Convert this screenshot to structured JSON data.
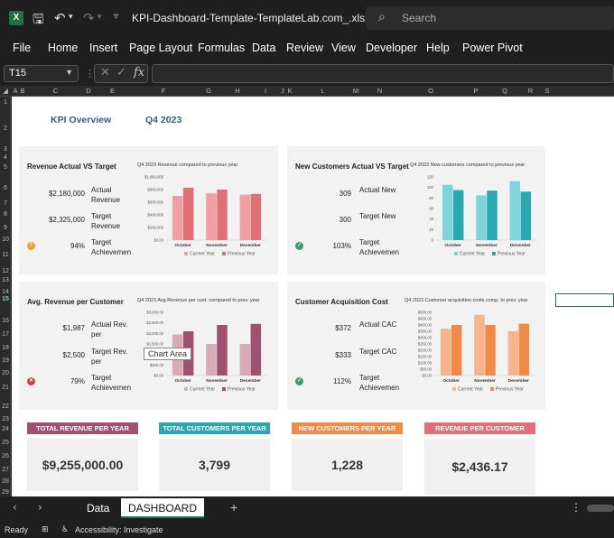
{
  "window": {
    "app_logo": "X",
    "title": "KPI-Dashboard-Template-TemplateLab.com_.xlsx  -...",
    "search_placeholder": "Search"
  },
  "menu": [
    "File",
    "Home",
    "Insert",
    "Page Layout",
    "Formulas",
    "Data",
    "Review",
    "View",
    "Developer",
    "Help",
    "Power Pivot"
  ],
  "formula_bar": {
    "name_box": "T15",
    "cancel": "✕",
    "enter": "✓",
    "fx": "fx"
  },
  "columns": [
    "A",
    "B",
    "C",
    "D",
    "E",
    "F",
    "G",
    "H",
    "I",
    "J",
    "K",
    "L",
    "M",
    "N",
    "O",
    "P",
    "Q",
    "R",
    "S"
  ],
  "rows": [
    "1",
    "2",
    "3",
    "4",
    "5",
    "6",
    "7",
    "8",
    "9",
    "10",
    "11",
    "12",
    "13",
    "14",
    "15",
    "16",
    "17",
    "18",
    "19",
    "20",
    "21",
    "22",
    "23",
    "24",
    "25",
    "26",
    "27",
    "28",
    "29"
  ],
  "selected_row": "15",
  "dashboard": {
    "title": "KPI Overview",
    "quarter": "Q4 2023"
  },
  "panels": [
    {
      "title": "Revenue Actual VS Target",
      "metrics": [
        {
          "value": "$2,180,000",
          "label": "Actual Revenue"
        },
        {
          "value": "$2,325,000",
          "label": "Target Revenue"
        },
        {
          "value": "94%",
          "label": "Target Achievemen"
        }
      ],
      "status": "warning",
      "status_color": "#f0a030",
      "chart_caption": "Q4 2023  Revenue compared to previous year"
    },
    {
      "title": "New Customers Actual VS Target",
      "metrics": [
        {
          "value": "309",
          "label": "Actual New"
        },
        {
          "value": "300",
          "label": "Target New"
        },
        {
          "value": "103%",
          "label": "Target Achievemen"
        }
      ],
      "status": "ok",
      "status_color": "#3a9a6a",
      "chart_caption": "Q4 2023  New customers compared to previous year"
    },
    {
      "title": "Avg. Revenue per Customer",
      "metrics": [
        {
          "value": "$1,987",
          "label": "Actual Rev. per"
        },
        {
          "value": "$2,500",
          "label": "Target Rev. per"
        },
        {
          "value": "79%",
          "label": "Target Achievemen"
        }
      ],
      "status": "fail",
      "status_color": "#d04040",
      "chart_caption": "Q4 2023  Avg.Revenue per cust. compared to prev. year"
    },
    {
      "title": "Customer Acquisition Cost",
      "metrics": [
        {
          "value": "$372",
          "label": "Actual CAC"
        },
        {
          "value": "$333",
          "label": "Target CAC"
        },
        {
          "value": "112%",
          "label": "Target Achievemen"
        }
      ],
      "status": "ok",
      "status_color": "#3a9a6a",
      "chart_caption": "Q4 2023  Customer acquisition costs comp. to prev. year"
    }
  ],
  "tooltip": "Chart Area",
  "chart_data": [
    {
      "type": "bar",
      "categories": [
        "October",
        "November",
        "December"
      ],
      "series": [
        {
          "name": "Current Year",
          "values": [
            700000,
            740000,
            720000
          ],
          "color": "#f0a0a4"
        },
        {
          "name": "Previous Year",
          "values": [
            830000,
            800000,
            730000
          ],
          "color": "#e07078"
        }
      ],
      "yticks": [
        "$1,000,000",
        "$800,000",
        "$600,000",
        "$400,000",
        "$200,000",
        "$0.00"
      ],
      "ylim": [
        0,
        1000000
      ]
    },
    {
      "type": "bar",
      "categories": [
        "October",
        "November",
        "December"
      ],
      "series": [
        {
          "name": "Current Year",
          "values": [
            105,
            85,
            112
          ],
          "color": "#7fd4dc"
        },
        {
          "name": "Previous Year",
          "values": [
            95,
            94,
            92
          ],
          "color": "#2aa8b0"
        }
      ],
      "yticks": [
        "120",
        "100",
        "80",
        "60",
        "40",
        "20",
        "0"
      ],
      "ylim": [
        0,
        120
      ]
    },
    {
      "type": "bar",
      "categories": [
        "October",
        "November",
        "December"
      ],
      "series": [
        {
          "name": "Current Year",
          "values": [
            1950,
            1500,
            1500
          ],
          "color": "#d8aab8"
        },
        {
          "name": "Previous Year",
          "values": [
            2100,
            2400,
            2450
          ],
          "color": "#a05070"
        }
      ],
      "yticks": [
        "$3,000.00",
        "$2,500.00",
        "$2,000.00",
        "$1,500.00",
        "$1,000.00",
        "$500.00",
        "$0.00"
      ],
      "ylim": [
        0,
        3000
      ]
    },
    {
      "type": "bar",
      "categories": [
        "October",
        "November",
        "December"
      ],
      "series": [
        {
          "name": "Current Year",
          "values": [
            370,
            480,
            350
          ],
          "color": "#f7b48a"
        },
        {
          "name": "Previous Year",
          "values": [
            400,
            400,
            410
          ],
          "color": "#f08a48"
        }
      ],
      "yticks": [
        "$500.00",
        "$450.00",
        "$400.00",
        "$350.00",
        "$300.00",
        "$250.00",
        "$200.00",
        "$150.00",
        "$100.00",
        "$50.00",
        "$0.00"
      ],
      "ylim": [
        0,
        500
      ]
    }
  ],
  "cards": [
    {
      "header": "TOTAL REVENUE PER YEAR",
      "value": "$9,255,000.00",
      "color": "#a05070"
    },
    {
      "header": "TOTAL CUSTOMERS PER YEAR",
      "value": "3,799",
      "color": "#2aa8b0"
    },
    {
      "header": "NEW CUSTOMERS PER YEAR",
      "value": "1,228",
      "color": "#f08a48"
    },
    {
      "header": "REVENUE PER CUSTOMER",
      "value": "$2,436.17",
      "color": "#e07078"
    }
  ],
  "tabs": {
    "items": [
      "Data",
      "DASHBOARD"
    ],
    "active": "DASHBOARD",
    "add": "+",
    "more": "⋮"
  },
  "status": {
    "ready": "Ready",
    "accessibility": "Accessibility: Investigate"
  }
}
